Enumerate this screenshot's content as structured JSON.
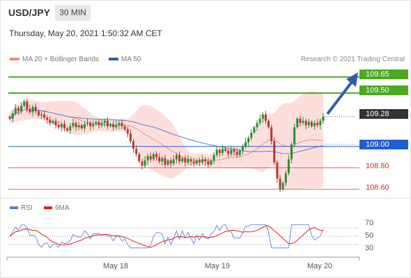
{
  "header": {
    "pair": "USD/JPY",
    "timeframe": "30 MIN",
    "datetime": "Thursday, May 20, 2021 1:50:32 AM CET"
  },
  "legend": {
    "ma20_label": "MA 20 + Bollinger Bands",
    "ma50_label": "MA 50",
    "credit": "Research © 2021 Trading Central"
  },
  "colors": {
    "green": "#4caa1f",
    "blue": "#1f5fd1",
    "red": "#e8675f",
    "dark": "#333333",
    "candle_up": "#2e8b2e",
    "candle_down": "#b13a33",
    "bollinger": "#fbd4d1",
    "ma20": "#f28c87",
    "ma50": "#5a7fc8"
  },
  "price_levels": [
    {
      "name": "target-2",
      "value": "109.65",
      "style": "green"
    },
    {
      "name": "target-1",
      "value": "109.50",
      "style": "green"
    },
    {
      "name": "last-price",
      "value": "109.28",
      "style": "dark"
    },
    {
      "name": "pivot",
      "value": "109.00",
      "style": "blue"
    },
    {
      "name": "support-1",
      "value": "108.80",
      "style": "red"
    },
    {
      "name": "support-2",
      "value": "108.60",
      "style": "red"
    }
  ],
  "rsi": {
    "label": "RSI",
    "ma_label": "9MA",
    "ticks": [
      "70",
      "50",
      "30"
    ]
  },
  "x_axis": {
    "labels": [
      "May 18",
      "May 19",
      "May 20"
    ]
  },
  "chart_data": {
    "type": "candlestick",
    "instrument": "USD/JPY",
    "timeframe": "30 MIN",
    "close": [
      109.26,
      109.31,
      109.36,
      109.33,
      109.38,
      109.42,
      109.35,
      109.32,
      109.37,
      109.33,
      109.29,
      109.3,
      109.27,
      109.25,
      109.22,
      109.24,
      109.2,
      109.18,
      109.21,
      109.17,
      109.15,
      109.19,
      109.22,
      109.18,
      109.2,
      109.17,
      109.21,
      109.22,
      109.19,
      109.21,
      109.23,
      109.2,
      109.22,
      109.24,
      109.19,
      109.21,
      109.18,
      109.2,
      109.22,
      109.19,
      109.16,
      109.12,
      109.05,
      108.98,
      108.93,
      108.86,
      108.82,
      108.87,
      108.91,
      108.88,
      108.93,
      108.9,
      108.86,
      108.89,
      108.83,
      108.87,
      108.84,
      108.88,
      108.92,
      108.86,
      108.89,
      108.85,
      108.88,
      108.86,
      108.84,
      108.87,
      108.85,
      108.88,
      108.86,
      108.83,
      108.87,
      108.92,
      108.97,
      108.94,
      108.98,
      108.96,
      108.93,
      108.97,
      108.95,
      108.92,
      108.96,
      109.0,
      109.04,
      109.08,
      109.13,
      109.18,
      109.22,
      109.26,
      109.3,
      109.24,
      109.18,
      109.05,
      108.85,
      108.7,
      108.6,
      108.66,
      108.75,
      108.88,
      109.02,
      109.18,
      109.26,
      109.22,
      109.24,
      109.2,
      109.23,
      109.19,
      109.22,
      109.2,
      109.24,
      109.28
    ],
    "levels": [
      109.65,
      109.5,
      109.28,
      109.0,
      108.8,
      108.6
    ],
    "ylim": [
      108.55,
      109.72
    ],
    "rsi_ylim": [
      20,
      80
    ],
    "rsi_ticks": [
      70,
      50,
      30
    ]
  }
}
